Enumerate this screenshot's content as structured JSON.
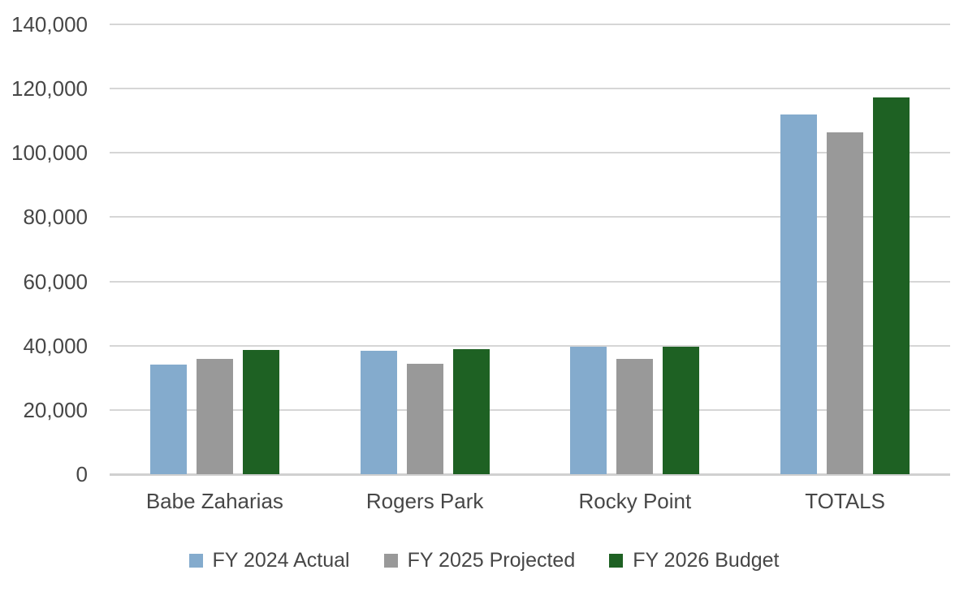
{
  "chart_data": {
    "type": "bar",
    "title": "",
    "categories": [
      "Babe Zaharias",
      "Rogers Park",
      "Rocky Point",
      "TOTALS"
    ],
    "series": [
      {
        "name": "FY 2024 Actual",
        "color": "#84ABCD",
        "values": [
          34000,
          38300,
          39600,
          111900
        ]
      },
      {
        "name": "FY 2025 Projected",
        "color": "#999999",
        "values": [
          35900,
          34400,
          36000,
          106300
        ]
      },
      {
        "name": "FY 2026 Budget",
        "color": "#1E6123",
        "values": [
          38600,
          39000,
          39700,
          117300
        ]
      }
    ],
    "xlabel": "",
    "ylabel": "",
    "ylim": [
      0,
      140000
    ],
    "ytick_interval": 20000,
    "yticks": [
      {
        "value": 0,
        "label": "0"
      },
      {
        "value": 20000,
        "label": "20,000"
      },
      {
        "value": 40000,
        "label": "40,000"
      },
      {
        "value": 60000,
        "label": "60,000"
      },
      {
        "value": 80000,
        "label": "80,000"
      },
      {
        "value": 100000,
        "label": "100,000"
      },
      {
        "value": 120000,
        "label": "120,000"
      },
      {
        "value": 140000,
        "label": "140,000"
      }
    ],
    "grid": true,
    "gridline_color": "#d6d6d6",
    "legend_position": "bottom",
    "text_color": "#474747",
    "background_color": "#ffffff"
  }
}
